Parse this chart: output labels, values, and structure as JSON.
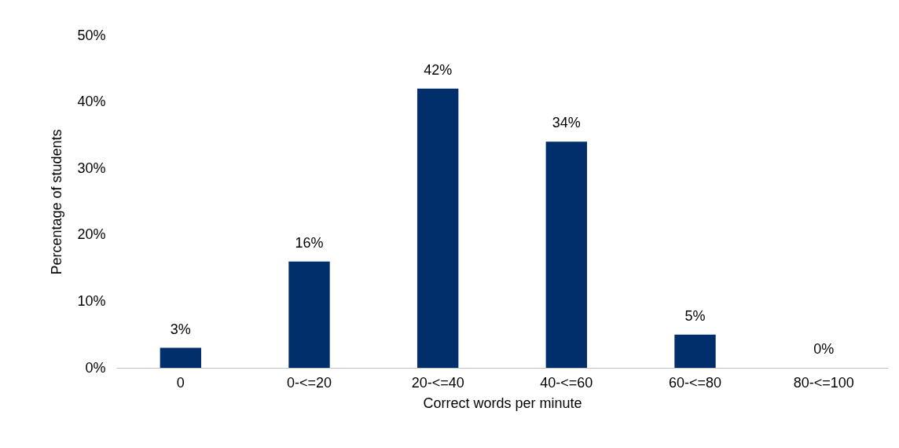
{
  "chart_data": {
    "type": "bar",
    "xlabel": "Correct words per minute",
    "ylabel": "Percentage of students",
    "categories": [
      "0",
      "0-<=20",
      "20-<=40",
      "40-<=60",
      "60-<=80",
      "80-<=100"
    ],
    "values": [
      3,
      16,
      42,
      34,
      5,
      0
    ],
    "value_labels": [
      "3%",
      "16%",
      "42%",
      "34%",
      "5%",
      "0%"
    ],
    "color": "#002f6c",
    "ylim": [
      0,
      50
    ],
    "yticks": [
      {
        "value": 0,
        "label": "0%"
      },
      {
        "value": 10,
        "label": "10%"
      },
      {
        "value": 20,
        "label": "20%"
      },
      {
        "value": 30,
        "label": "30%"
      },
      {
        "value": 40,
        "label": "40%"
      },
      {
        "value": 50,
        "label": "50%"
      }
    ]
  }
}
